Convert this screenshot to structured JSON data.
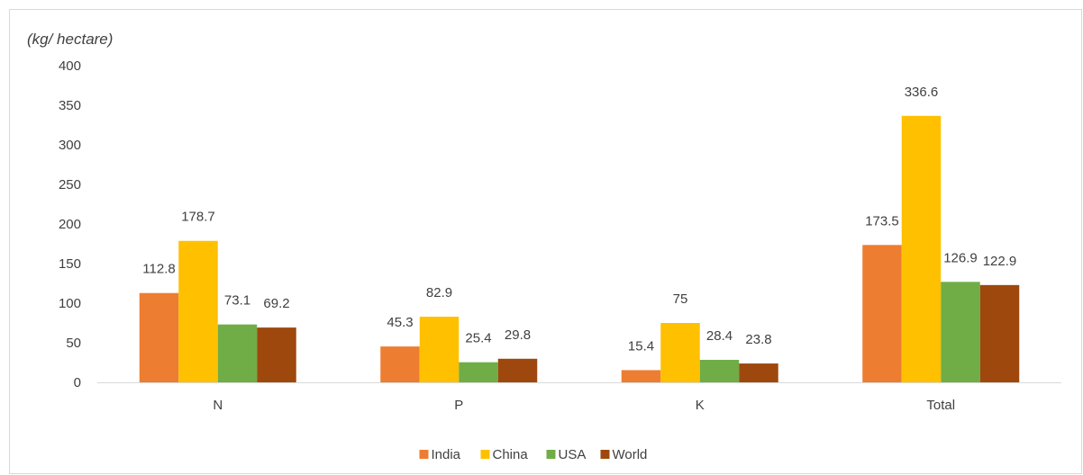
{
  "chart_data": {
    "type": "bar",
    "unit_label": "(kg/ hectare)",
    "categories": [
      "N",
      "P",
      "K",
      "Total"
    ],
    "series": [
      {
        "name": "India",
        "color": "#ed7d31",
        "values": [
          112.8,
          45.3,
          15.4,
          173.5
        ],
        "labels": [
          "112.8",
          "45.3",
          "15.4",
          "173.5"
        ]
      },
      {
        "name": "China",
        "color": "#ffc000",
        "values": [
          178.7,
          82.9,
          75,
          336.6
        ],
        "labels": [
          "178.7",
          "82.9",
          "75",
          "336.6"
        ]
      },
      {
        "name": "USA",
        "color": "#70ad47",
        "values": [
          73.1,
          25.4,
          28.4,
          126.9
        ],
        "labels": [
          "73.1",
          "25.4",
          "28.4",
          "126.9"
        ]
      },
      {
        "name": "World",
        "color": "#9e480e",
        "values": [
          69.2,
          29.8,
          23.8,
          122.9
        ],
        "labels": [
          "69.2",
          "29.8",
          "23.8",
          "122.9"
        ]
      }
    ],
    "ylim": [
      0,
      400
    ],
    "yticks": [
      "0",
      "50",
      "100",
      "150",
      "200",
      "250",
      "300",
      "350",
      "400"
    ],
    "grid": false,
    "legend_position": "bottom"
  }
}
